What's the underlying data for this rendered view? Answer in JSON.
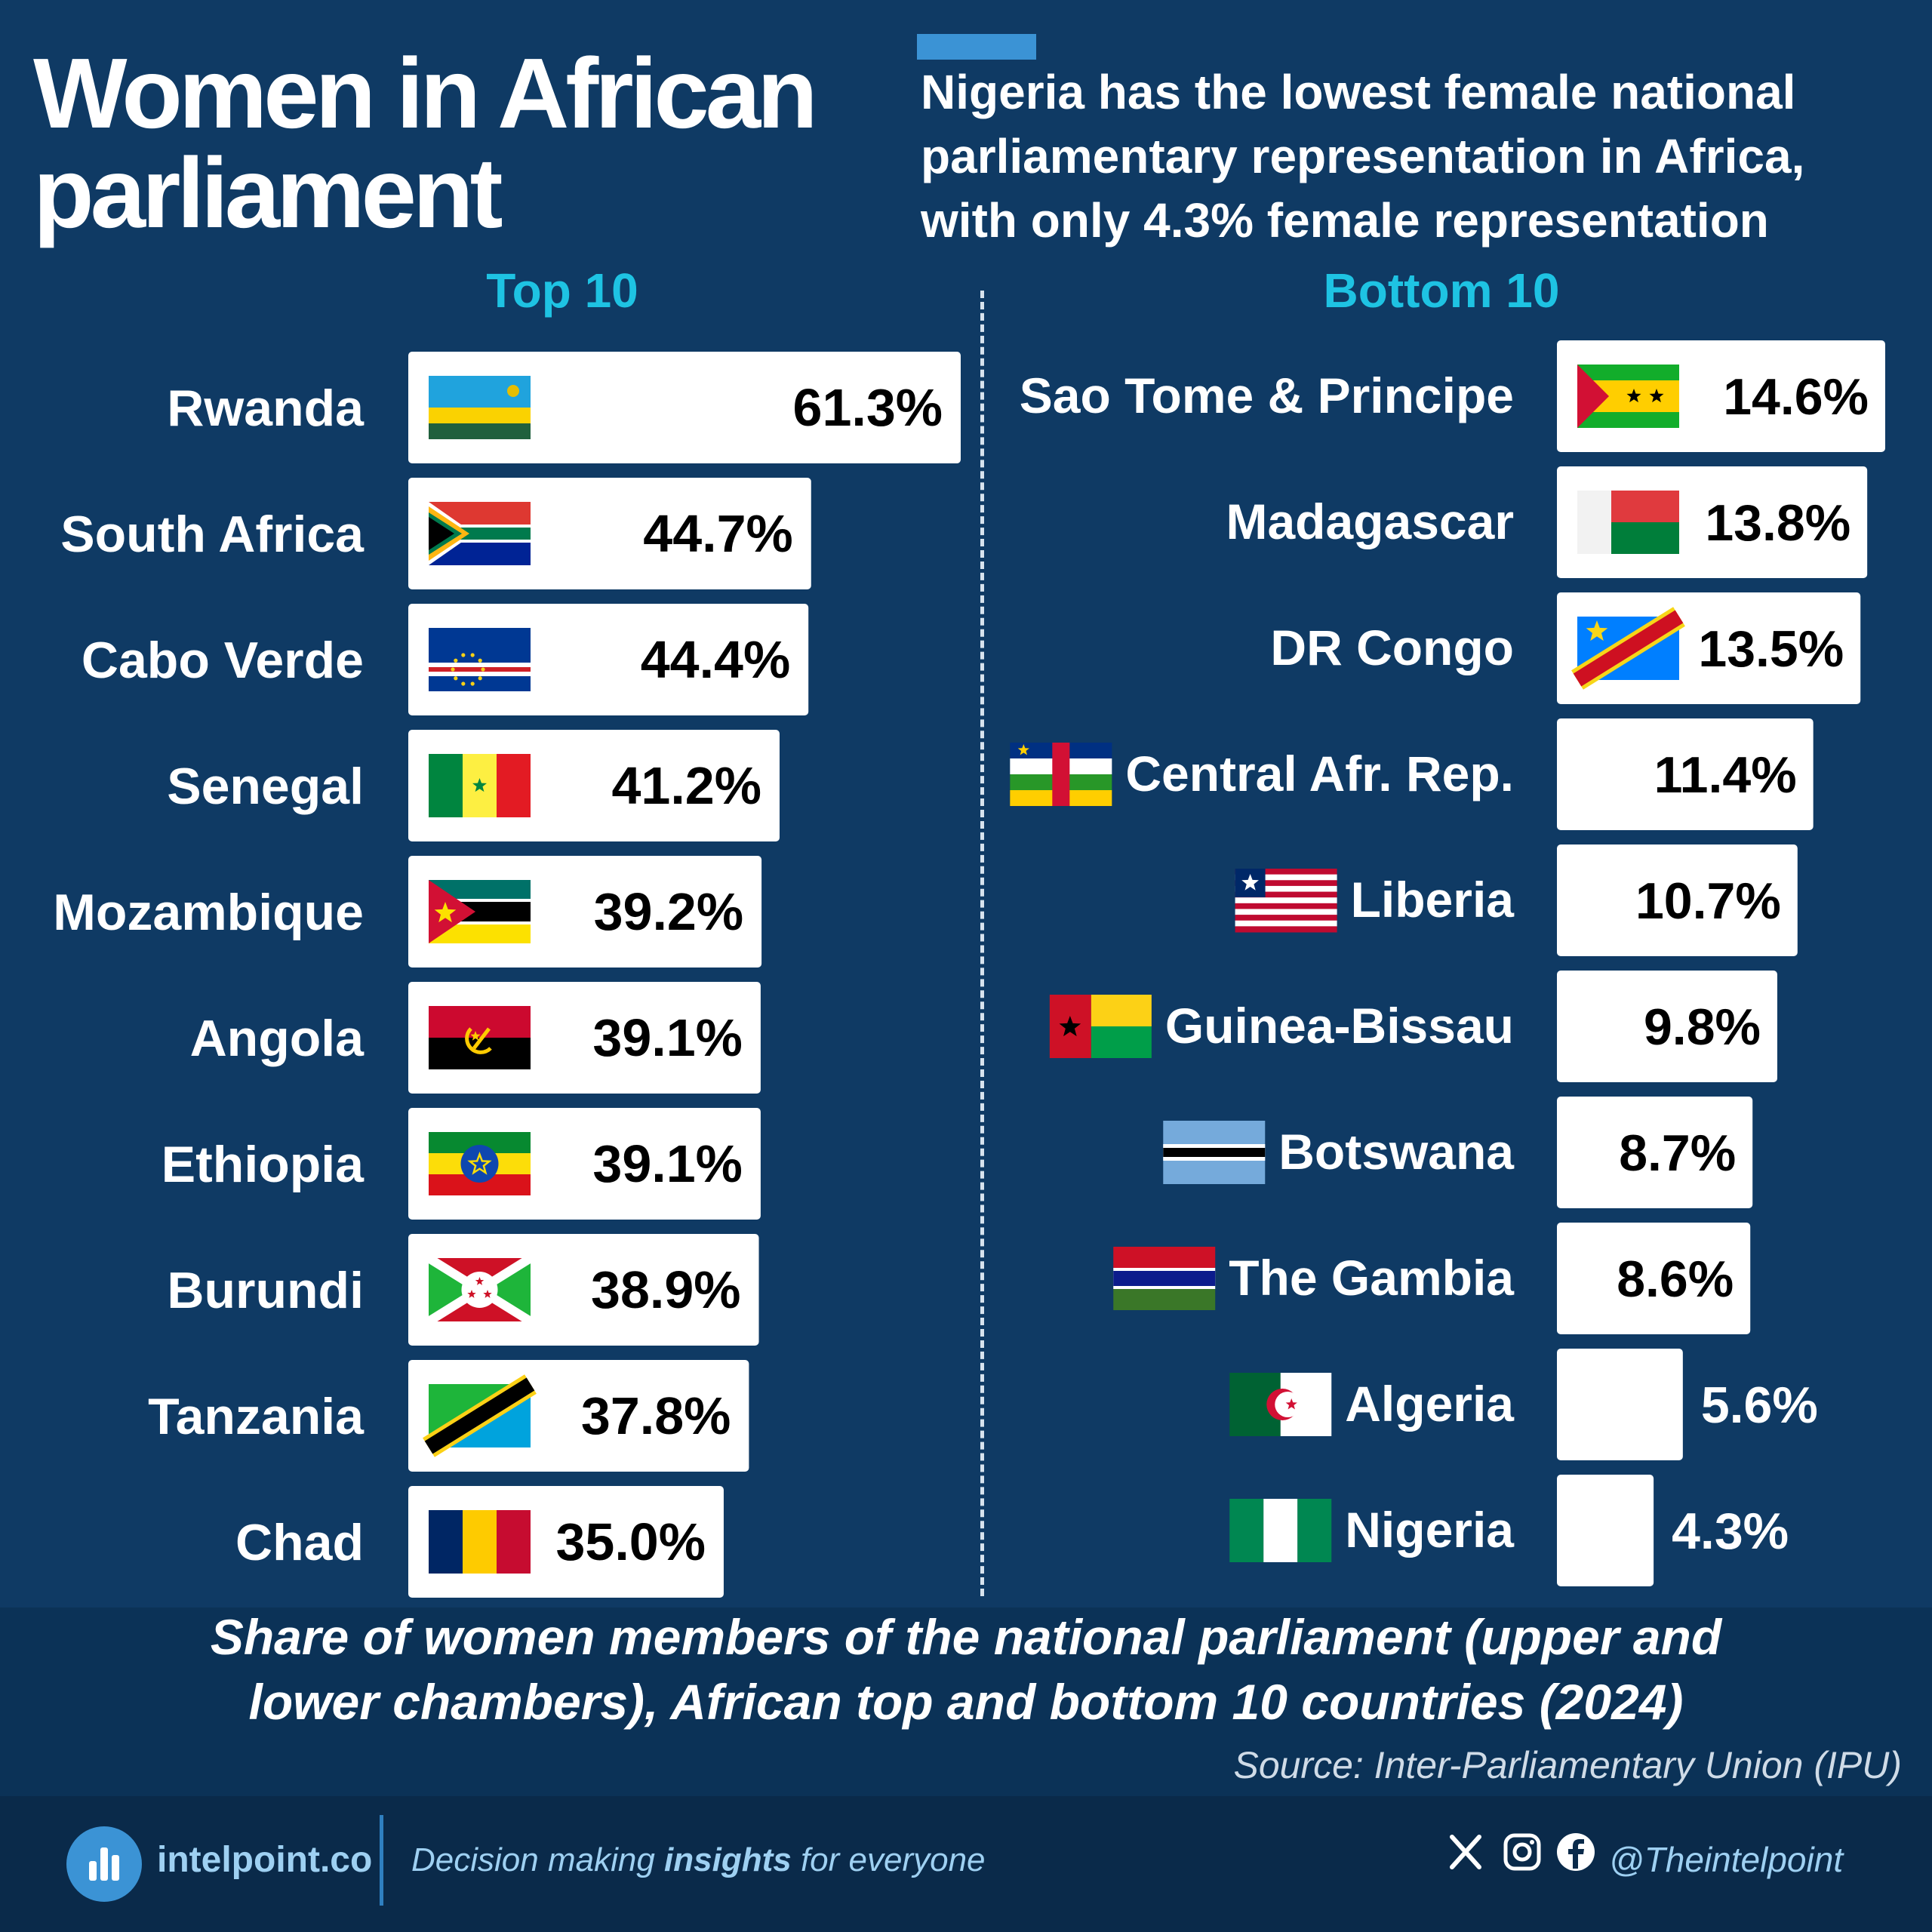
{
  "header": {
    "title_line1": "Women in African",
    "title_line2": "parliament",
    "subtitle_line1": "Nigeria has the lowest female national",
    "subtitle_line2": "parliamentary representation in Africa,",
    "subtitle_line3": "with only 4.3% female representation"
  },
  "chart_data": {
    "type": "bar",
    "orientation": "horizontal",
    "unit": "%",
    "groups": [
      {
        "label": "Top 10",
        "categories": [
          "Rwanda",
          "South Africa",
          "Cabo Verde",
          "Senegal",
          "Mozambique",
          "Angola",
          "Ethiopia",
          "Burundi",
          "Tanzania",
          "Chad"
        ],
        "values": [
          61.3,
          44.7,
          44.4,
          41.2,
          39.2,
          39.1,
          39.1,
          38.9,
          37.8,
          35.0
        ],
        "value_labels": [
          "61.3%",
          "44.7%",
          "44.4%",
          "41.2%",
          "39.2%",
          "39.1%",
          "39.1%",
          "38.9%",
          "37.8%",
          "35.0%"
        ]
      },
      {
        "label": "Bottom 10",
        "categories": [
          "Sao Tome & Principe",
          "Madagascar",
          "DR Congo",
          "Central Afr. Rep.",
          "Liberia",
          "Guinea-Bissau",
          "Botswana",
          "The Gambia",
          "Algeria",
          "Nigeria"
        ],
        "values": [
          14.6,
          13.8,
          13.5,
          11.4,
          10.7,
          9.8,
          8.7,
          8.6,
          5.6,
          4.3
        ],
        "value_labels": [
          "14.6%",
          "13.8%",
          "13.5%",
          "11.4%",
          "10.7%",
          "9.8%",
          "8.7%",
          "8.6%",
          "5.6%",
          "4.3%"
        ]
      }
    ],
    "bar_color": "#ffffff",
    "background_color": "#0f3a64",
    "flag_icons": {
      "Rwanda": "rwanda-flag-icon",
      "South Africa": "south-africa-flag-icon",
      "Cabo Verde": "cabo-verde-flag-icon",
      "Senegal": "senegal-flag-icon",
      "Mozambique": "mozambique-flag-icon",
      "Angola": "angola-flag-icon",
      "Ethiopia": "ethiopia-flag-icon",
      "Burundi": "burundi-flag-icon",
      "Tanzania": "tanzania-flag-icon",
      "Chad": "chad-flag-icon",
      "Sao Tome & Principe": "sao-tome-flag-icon",
      "Madagascar": "madagascar-flag-icon",
      "DR Congo": "dr-congo-flag-icon",
      "Central Afr. Rep.": "central-african-republic-flag-icon",
      "Liberia": "liberia-flag-icon",
      "Guinea-Bissau": "guinea-bissau-flag-icon",
      "Botswana": "botswana-flag-icon",
      "The Gambia": "gambia-flag-icon",
      "Algeria": "algeria-flag-icon",
      "Nigeria": "nigeria-flag-icon"
    },
    "caption_line1": "Share of women members of the national parliament (upper and",
    "caption_line2": "lower chambers), African top and bottom 10 countries (2024)",
    "source": "Source: Inter-Parliamentary Union (IPU)"
  },
  "footer": {
    "brand": "intelpoint.co",
    "tagline_prefix": "Decision making ",
    "tagline_bold": "insights",
    "tagline_suffix": " for everyone",
    "handle": "@Theintelpoint",
    "social_icons": [
      "x-icon",
      "instagram-icon",
      "facebook-icon"
    ]
  }
}
